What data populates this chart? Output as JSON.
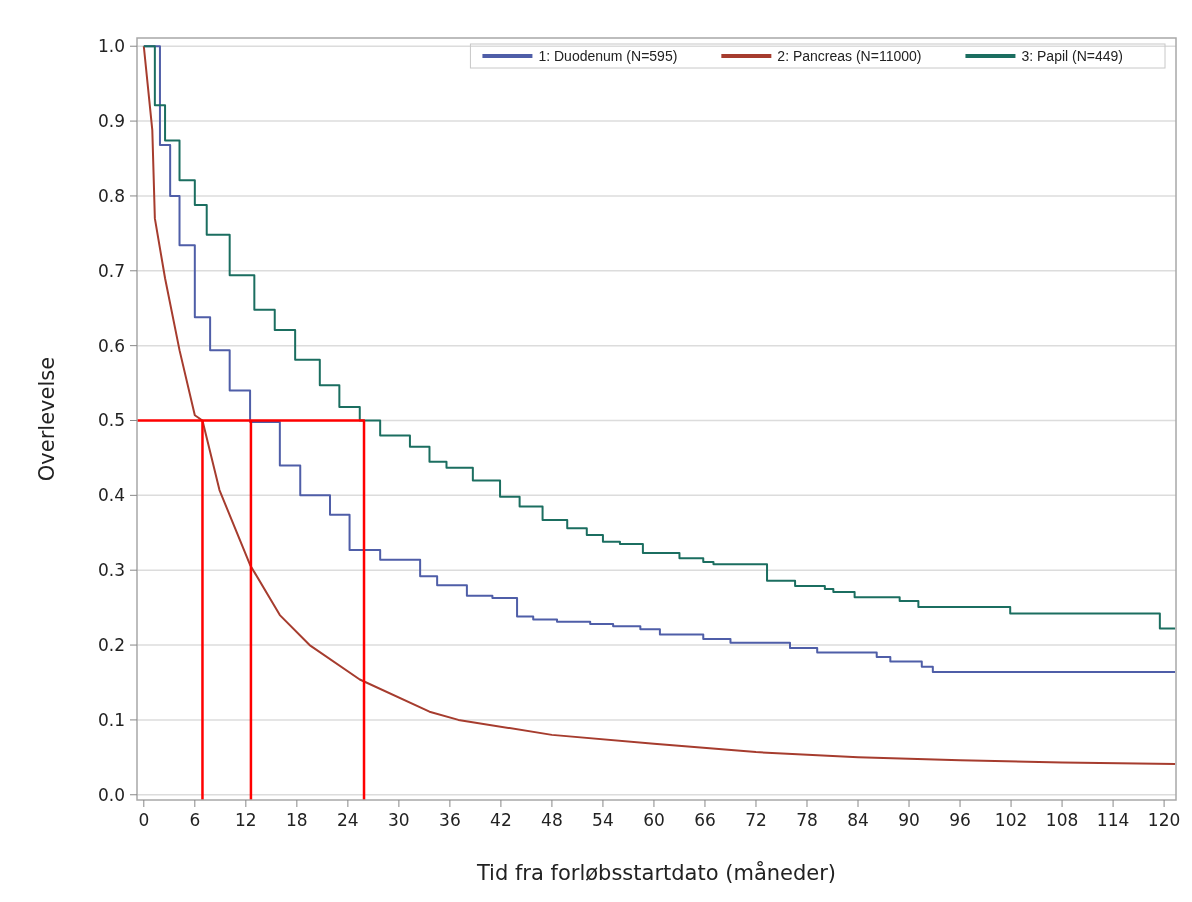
{
  "chart_data": {
    "type": "step",
    "xlabel": "Tid fra forløbsstartdato (måneder)",
    "ylabel": "Overlevelse",
    "xlim": [
      -0.8,
      121.4
    ],
    "ylim": [
      -0.007,
      1.011
    ],
    "xticks": [
      0,
      6,
      12,
      18,
      24,
      30,
      36,
      42,
      48,
      54,
      60,
      66,
      72,
      78,
      84,
      90,
      96,
      102,
      108,
      114,
      120
    ],
    "yticks": [
      {
        "value": 0,
        "label": "0.0"
      },
      0.1,
      0.2,
      0.3,
      0.4,
      0.5,
      0.6,
      0.7,
      0.8,
      0.9,
      {
        "value": 1,
        "label": "1.0"
      }
    ],
    "grid": "y",
    "legend": "top right",
    "series": [
      {
        "name": "1: Duodenum (N=595)",
        "color": "#4f5ea8",
        "x": [
          0,
          1.9,
          3.1,
          4.2,
          6,
          7.8,
          10.1,
          12.5,
          16,
          18.4,
          21.9,
          24.2,
          27.8,
          32.5,
          34.5,
          38,
          41,
          43.9,
          45.8,
          48.6,
          52.5,
          55.2,
          58.4,
          60.7,
          65.8,
          69,
          76,
          79.2,
          86.2,
          87.8,
          91.5,
          92.8,
          121.3
        ],
        "values": [
          1,
          0.868,
          0.8,
          0.734,
          0.638,
          0.594,
          0.54,
          0.498,
          0.44,
          0.4,
          0.374,
          0.327,
          0.314,
          0.292,
          0.28,
          0.266,
          0.263,
          0.238,
          0.234,
          0.231,
          0.228,
          0.225,
          0.221,
          0.214,
          0.208,
          0.203,
          0.196,
          0.19,
          0.184,
          0.178,
          0.171,
          0.164,
          0.164
        ]
      },
      {
        "name": "2: Pancreas (N=11000)",
        "color": "#a63c2e",
        "type": "line",
        "x": [
          0,
          1,
          1.3,
          2.5,
          4.2,
          6,
          6.9,
          8.9,
          12.5,
          16,
          19.5,
          25.4,
          33.6,
          37,
          48,
          60,
          72,
          84,
          96,
          108,
          121.3
        ],
        "values": [
          1,
          0.888,
          0.77,
          0.69,
          0.594,
          0.507,
          0.5,
          0.407,
          0.307,
          0.24,
          0.2,
          0.154,
          0.111,
          0.1,
          0.08,
          0.068,
          0.057,
          0.05,
          0.046,
          0.043,
          0.041
        ]
      },
      {
        "name": "3: Papil (N=449)",
        "color": "#1b6e60",
        "x": [
          0,
          1.3,
          2.5,
          4.2,
          6,
          7.4,
          10.1,
          13,
          15.4,
          17.8,
          20.7,
          23,
          25.4,
          27.8,
          31.3,
          33.6,
          35.6,
          38.7,
          41.9,
          44.2,
          46.9,
          49.8,
          52.1,
          54,
          56,
          58.7,
          63,
          65.8,
          67,
          73.3,
          76.6,
          80.1,
          81.1,
          83.6,
          88.9,
          91.1,
          101.9,
          119.5,
          121.3
        ],
        "values": [
          1,
          0.921,
          0.874,
          0.821,
          0.788,
          0.748,
          0.694,
          0.648,
          0.621,
          0.581,
          0.547,
          0.518,
          0.5,
          0.48,
          0.465,
          0.445,
          0.437,
          0.42,
          0.398,
          0.385,
          0.367,
          0.356,
          0.347,
          0.338,
          0.335,
          0.323,
          0.316,
          0.311,
          0.308,
          0.286,
          0.279,
          0.275,
          0.271,
          0.264,
          0.259,
          0.251,
          0.242,
          0.222,
          0.222
        ]
      },
      {
        "color": "#ff0000",
        "type": "line",
        "x": [
          -0.8,
          26
        ],
        "values": [
          0.5,
          0.5
        ]
      },
      {
        "color": "#ff0000",
        "type": "line",
        "x": [
          6.9,
          6.9
        ],
        "values": [
          -0.007,
          0.5
        ]
      },
      {
        "color": "#ff0000",
        "type": "line",
        "x": [
          12.6,
          12.6
        ],
        "values": [
          -0.007,
          0.5
        ]
      },
      {
        "color": "#ff0000",
        "type": "line",
        "x": [
          25.9,
          25.9
        ],
        "values": [
          -0.007,
          0.5
        ]
      }
    ]
  }
}
